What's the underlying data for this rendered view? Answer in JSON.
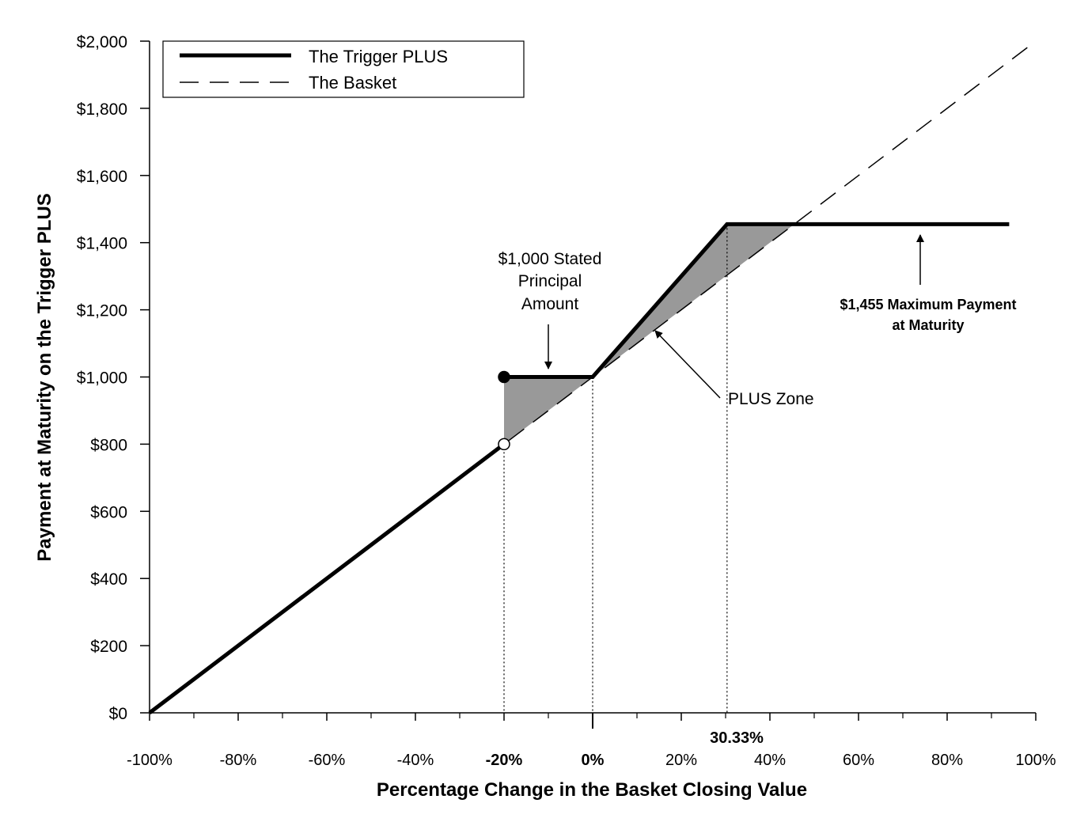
{
  "chart_data": {
    "type": "line",
    "xlabel": "Percentage Change in the Basket Closing Value",
    "ylabel": "Payment at Maturity on the Trigger PLUS",
    "xlim": [
      -100,
      100
    ],
    "ylim": [
      0,
      2000
    ],
    "x_ticks": [
      -100,
      -80,
      -60,
      -40,
      -20,
      0,
      20,
      40,
      60,
      80,
      100
    ],
    "x_tick_labels": [
      "-100%",
      "-80%",
      "-60%",
      "-40%",
      "-20%",
      "0%",
      "20%",
      "40%",
      "60%",
      "80%",
      "100%"
    ],
    "y_ticks": [
      0,
      200,
      400,
      600,
      800,
      1000,
      1200,
      1400,
      1600,
      1800,
      2000
    ],
    "y_tick_labels": [
      "$0",
      "$200",
      "$400",
      "$600",
      "$800",
      "$1,000",
      "$1,200",
      "$1,400",
      "$1,600",
      "$1,800",
      "$2,000"
    ],
    "legend_position": "top-left",
    "series": [
      {
        "name": "The Trigger PLUS",
        "style": "solid-thick",
        "segments": [
          [
            [
              -100,
              0
            ],
            [
              -20,
              800
            ]
          ],
          [
            [
              -20,
              1000
            ],
            [
              0,
              1000
            ],
            [
              30.33,
              1455
            ],
            [
              94,
              1455
            ]
          ]
        ]
      },
      {
        "name": "The Basket",
        "style": "dashed",
        "points": [
          [
            -100,
            0
          ],
          [
            100,
            2000
          ]
        ]
      }
    ],
    "markers": [
      {
        "x": -20,
        "y": 1000,
        "fill": "filled"
      },
      {
        "x": -20,
        "y": 800,
        "fill": "open"
      }
    ],
    "shaded_regions": [
      [
        [
          -20,
          800
        ],
        [
          -20,
          1000
        ],
        [
          0,
          1000
        ]
      ],
      [
        [
          0,
          1000
        ],
        [
          30.33,
          1455
        ],
        [
          45.5,
          1455
        ]
      ]
    ],
    "reference_lines_x": [
      -20,
      0,
      30.33
    ],
    "special_x_label": {
      "x": 30.33,
      "text": "30.33%"
    },
    "annotations": {
      "principal": [
        "$1,000 Stated",
        "Principal",
        "Amount"
      ],
      "plus_zone": "PLUS Zone",
      "max_payment": [
        "$1,455 Maximum Payment",
        "at Maturity"
      ]
    },
    "colors": {
      "line": "#000000",
      "shade": "#999999",
      "background": "#ffffff"
    }
  }
}
